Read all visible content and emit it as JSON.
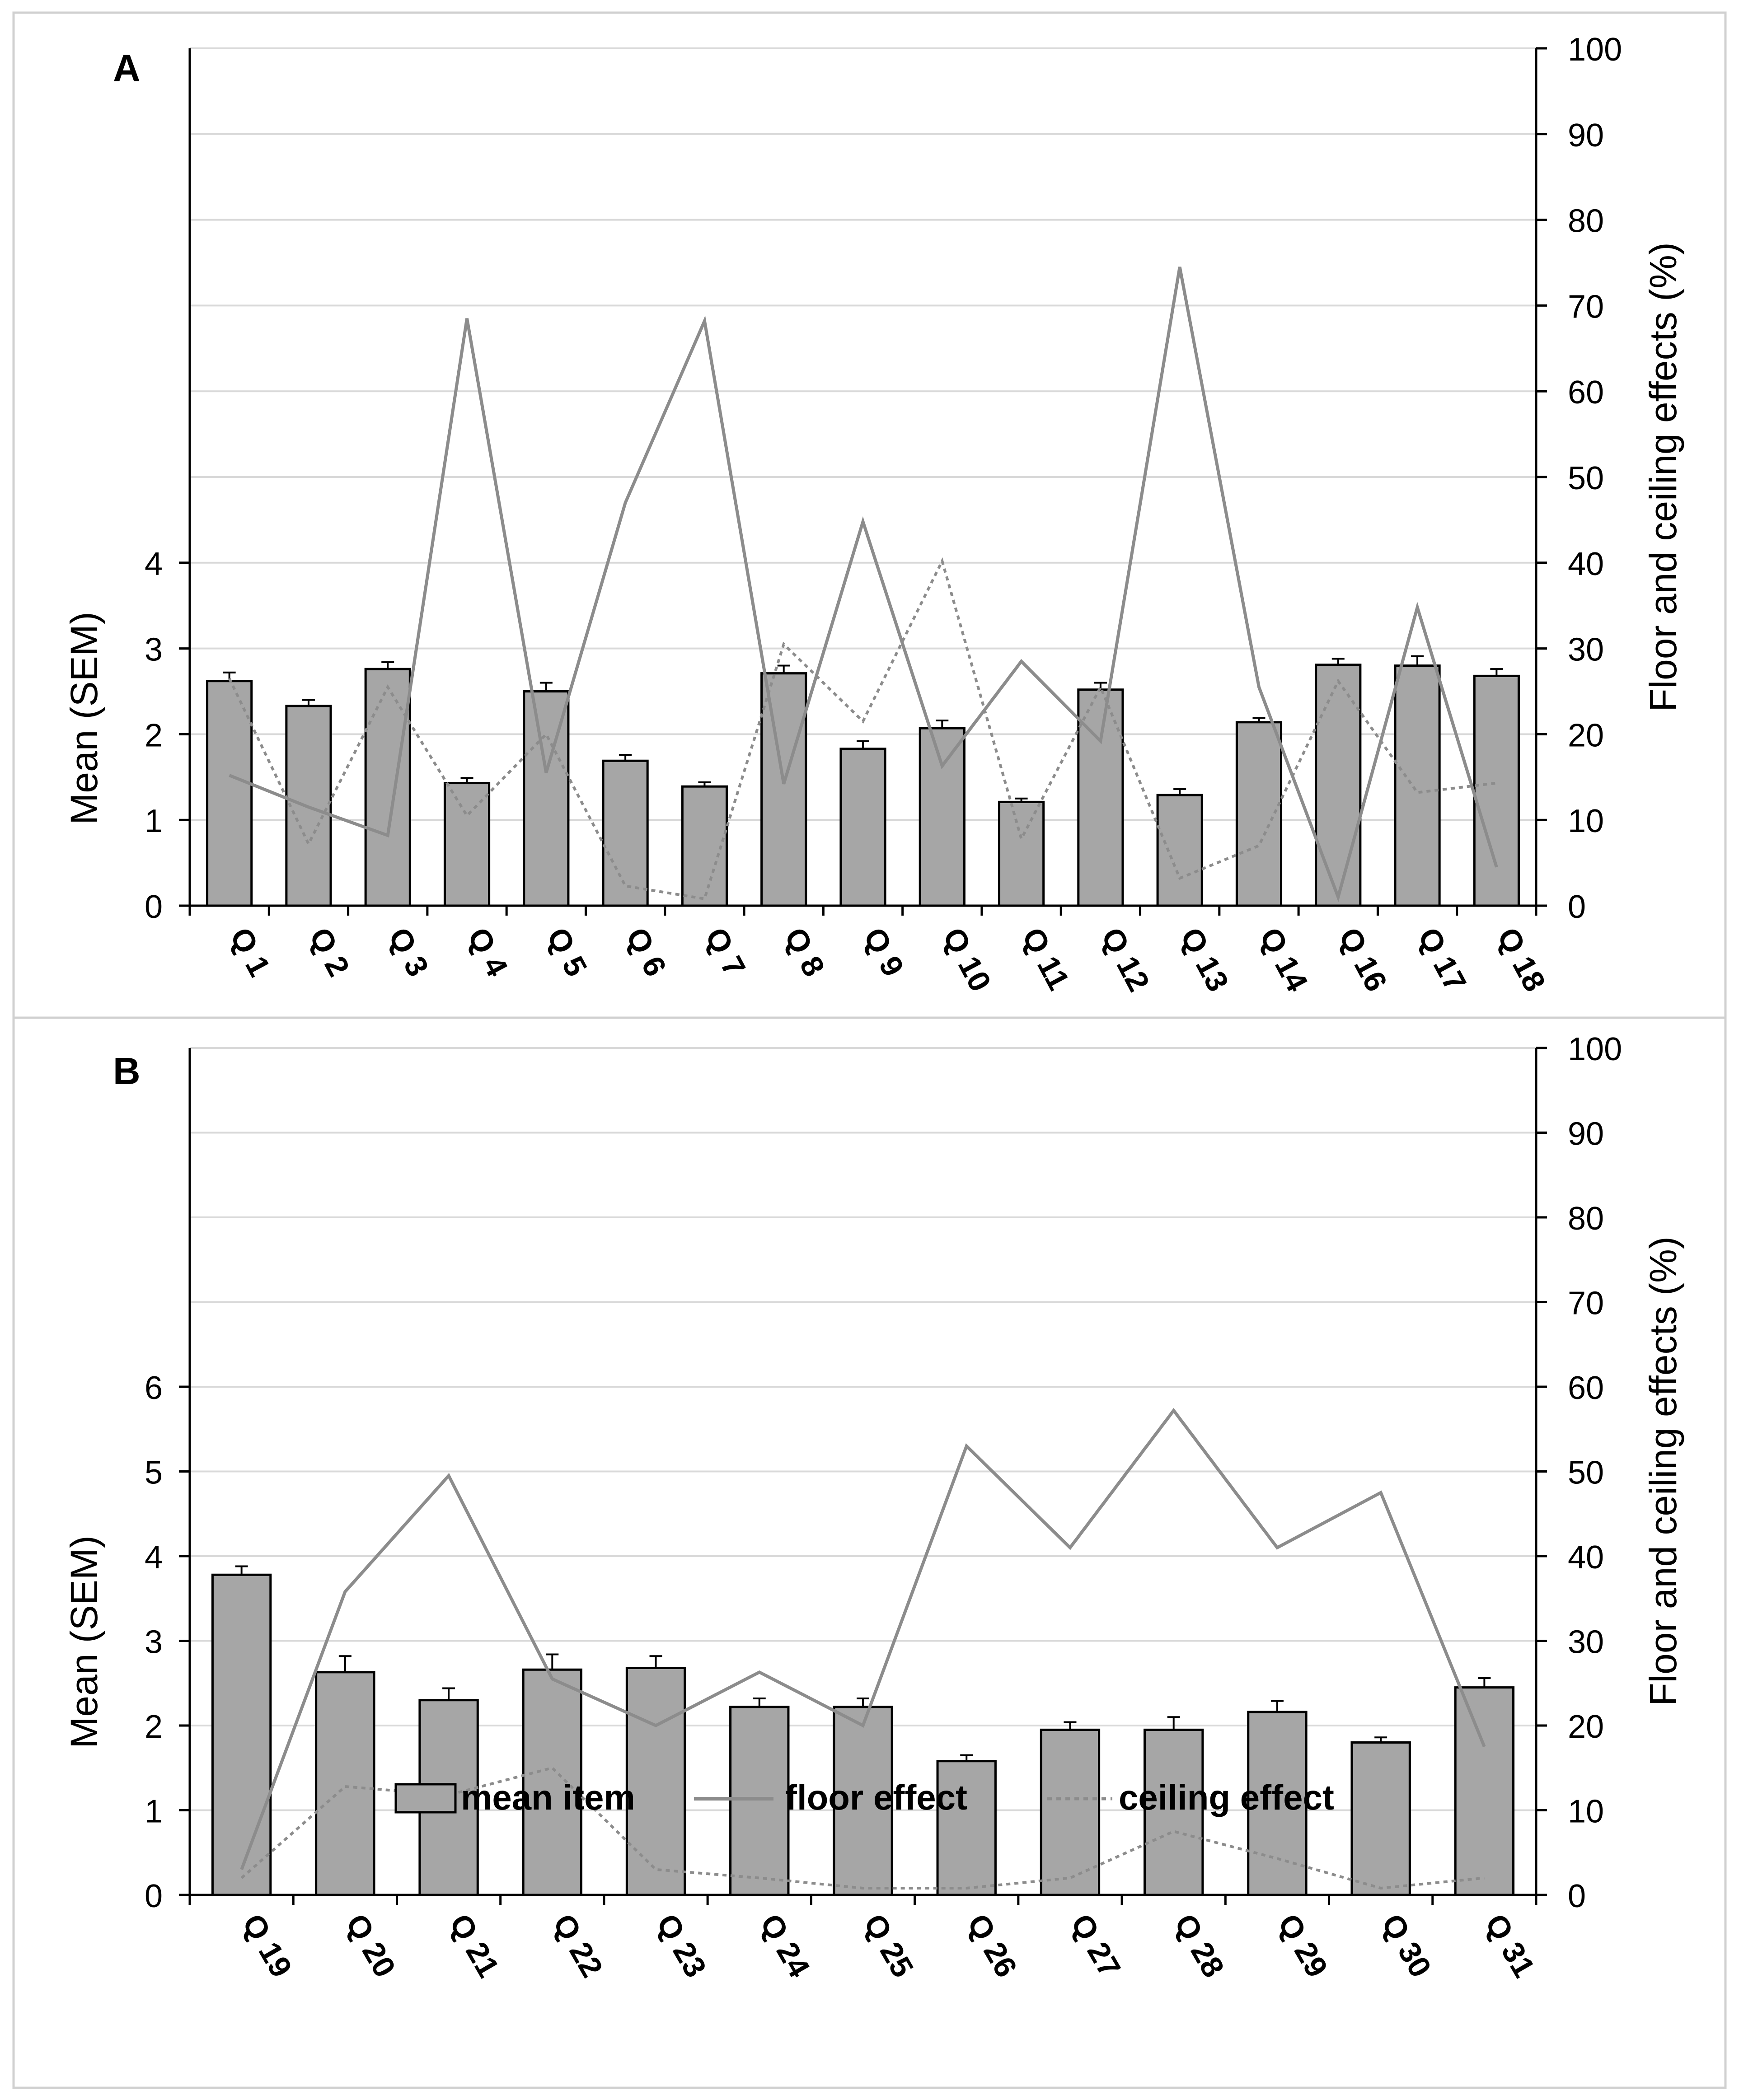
{
  "colors": {
    "bar_fill": "#a6a6a6",
    "bar_stroke": "#000000",
    "floor_line": "#8c8c8c",
    "ceiling_line": "#8c8c8c",
    "grid": "#d9d9d9",
    "axis": "#000000",
    "frame": "#d0d0d0"
  },
  "legend": {
    "mean_item": "mean item",
    "floor_effect": "floor effect",
    "ceiling_effect": "ceiling effect"
  },
  "chart_data": [
    {
      "panel_label": "A",
      "type": "bar",
      "title": "",
      "xlabel": "",
      "ylabel": "Mean (SEM)",
      "y2label": "Floor and ceiling effects (%)",
      "ylim": [
        0,
        10
      ],
      "y_ticks": [
        0,
        1,
        2,
        3,
        4
      ],
      "y2lim": [
        0,
        100
      ],
      "y2_ticks": [
        0,
        10,
        20,
        30,
        40,
        50,
        60,
        70,
        80,
        90,
        100
      ],
      "grid": true,
      "categories": [
        "Q 1",
        "Q 2",
        "Q 3",
        "Q 4",
        "Q 5",
        "Q 6",
        "Q 7",
        "Q 8",
        "Q 9",
        "Q 10",
        "Q 11",
        "Q 12",
        "Q 13",
        "Q 14",
        "Q 16",
        "Q 17",
        "Q 18"
      ],
      "series": [
        {
          "name": "mean item",
          "type": "bar",
          "axis": "left",
          "values": [
            2.62,
            2.33,
            2.76,
            1.43,
            2.5,
            1.69,
            1.39,
            2.71,
            1.83,
            2.07,
            1.21,
            2.52,
            1.29,
            2.14,
            2.81,
            2.8,
            2.68
          ],
          "errors": [
            0.1,
            0.07,
            0.08,
            0.06,
            0.1,
            0.07,
            0.05,
            0.09,
            0.09,
            0.09,
            0.04,
            0.08,
            0.07,
            0.05,
            0.07,
            0.11,
            0.08
          ]
        },
        {
          "name": "floor effect",
          "type": "line",
          "style": "solid",
          "axis": "right",
          "values": [
            15.2,
            11.5,
            8.2,
            68.5,
            15.5,
            47.0,
            68.2,
            14.2,
            44.8,
            16.3,
            28.5,
            19.2,
            74.5,
            25.5,
            1.0,
            34.8,
            4.5
          ]
        },
        {
          "name": "ceiling effect",
          "type": "line",
          "style": "dotted",
          "axis": "right",
          "values": [
            26.5,
            7.2,
            25.5,
            10.5,
            20.0,
            2.3,
            0.8,
            30.5,
            21.5,
            40.2,
            7.8,
            25.5,
            3.2,
            7.0,
            26.2,
            13.2,
            14.3
          ]
        }
      ]
    },
    {
      "panel_label": "B",
      "type": "bar",
      "title": "",
      "xlabel": "",
      "ylabel": "Mean (SEM)",
      "y2label": "Floor and ceiling effects (%)",
      "ylim": [
        0,
        10
      ],
      "y_ticks": [
        0,
        1,
        2,
        3,
        4,
        5,
        6
      ],
      "y2lim": [
        0,
        100
      ],
      "y2_ticks": [
        0,
        10,
        20,
        30,
        40,
        50,
        60,
        70,
        80,
        90,
        100
      ],
      "grid": true,
      "categories": [
        "Q 19",
        "Q 20",
        "Q 21",
        "Q 22",
        "Q 23",
        "Q 24",
        "Q 25",
        "Q 26",
        "Q 27",
        "Q 28",
        "Q 29",
        "Q 30",
        "Q 31"
      ],
      "series": [
        {
          "name": "mean item",
          "type": "bar",
          "axis": "left",
          "values": [
            3.78,
            2.63,
            2.3,
            2.66,
            2.68,
            2.22,
            2.22,
            1.58,
            1.95,
            1.95,
            2.16,
            1.8,
            2.45
          ],
          "errors": [
            0.1,
            0.19,
            0.14,
            0.18,
            0.14,
            0.1,
            0.1,
            0.07,
            0.09,
            0.15,
            0.13,
            0.06,
            0.11
          ]
        },
        {
          "name": "floor effect",
          "type": "line",
          "style": "solid",
          "axis": "right",
          "values": [
            3.0,
            35.8,
            49.5,
            25.5,
            20.0,
            26.3,
            20.0,
            53.0,
            41.0,
            57.2,
            41.0,
            47.5,
            17.5
          ]
        },
        {
          "name": "ceiling effect",
          "type": "line",
          "style": "dotted",
          "axis": "right",
          "values": [
            2.0,
            12.8,
            11.8,
            15.0,
            3.0,
            2.0,
            0.8,
            0.8,
            2.0,
            7.5,
            4.3,
            0.8,
            2.0
          ]
        }
      ]
    }
  ]
}
